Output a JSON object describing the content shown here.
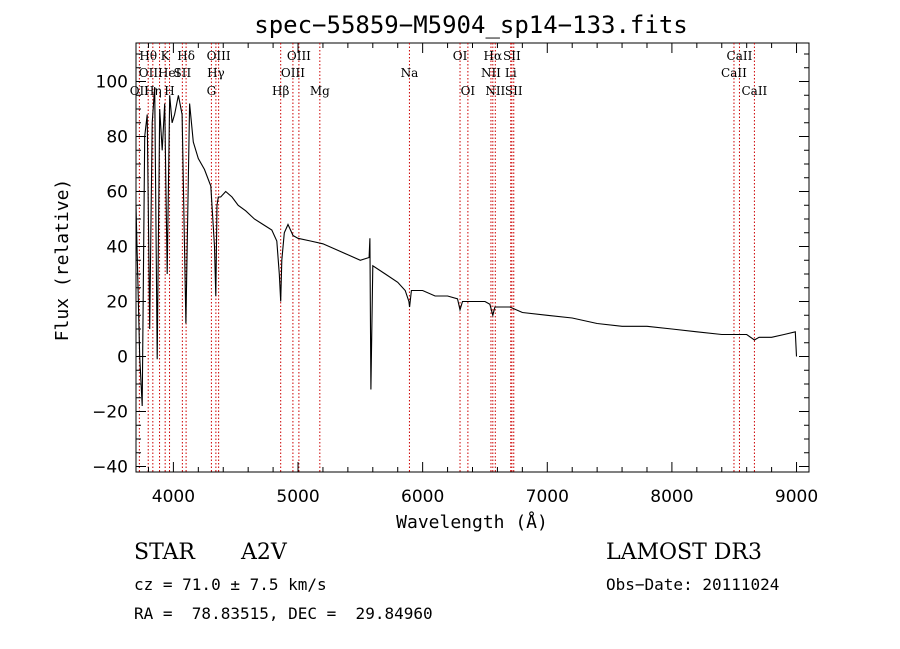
{
  "chart_data": {
    "type": "line",
    "title": "spec−55859−M5904_sp14−133.fits",
    "xlabel": "Wavelength (Å)",
    "ylabel": "Flux (relative)",
    "xlim": [
      3700,
      9100
    ],
    "ylim": [
      -42,
      114
    ],
    "x_ticks": [
      4000,
      5000,
      6000,
      7000,
      8000,
      9000
    ],
    "y_ticks": [
      -40,
      -20,
      0,
      20,
      40,
      60,
      80,
      100
    ],
    "x_tick_labels": [
      "4000",
      "5000",
      "6000",
      "7000",
      "8000",
      "9000"
    ],
    "y_tick_labels": [
      "−40",
      "−20",
      "0",
      "20",
      "40",
      "60",
      "80",
      "100"
    ],
    "series": [
      {
        "name": "flux",
        "x": [
          3700,
          3730,
          3750,
          3770,
          3790,
          3810,
          3830,
          3850,
          3870,
          3890,
          3910,
          3930,
          3950,
          3970,
          3990,
          4010,
          4040,
          4070,
          4100,
          4130,
          4160,
          4200,
          4250,
          4300,
          4330,
          4340,
          4350,
          4360,
          4380,
          4420,
          4470,
          4520,
          4580,
          4650,
          4720,
          4790,
          4830,
          4850,
          4861,
          4870,
          4890,
          4920,
          4960,
          5000,
          5100,
          5200,
          5300,
          5400,
          5500,
          5570,
          5577,
          5585,
          5600,
          5700,
          5800,
          5860,
          5890,
          5895,
          5910,
          5950,
          6000,
          6100,
          6200,
          6280,
          6300,
          6320,
          6400,
          6500,
          6540,
          6563,
          6580,
          6620,
          6700,
          6800,
          7000,
          7200,
          7400,
          7600,
          7800,
          8000,
          8200,
          8400,
          8500,
          8600,
          8662,
          8700,
          8800,
          8900,
          8990,
          9000
        ],
        "values": [
          55,
          0,
          -18,
          80,
          88,
          10,
          85,
          98,
          -1,
          90,
          75,
          92,
          30,
          95,
          85,
          88,
          95,
          88,
          12,
          92,
          78,
          72,
          68,
          62,
          40,
          22,
          55,
          58,
          58,
          60,
          58,
          55,
          53,
          50,
          48,
          46,
          42,
          30,
          20,
          35,
          45,
          48,
          44,
          43,
          42,
          41,
          39,
          37,
          35,
          36,
          43,
          -12,
          33,
          30,
          27,
          24,
          20,
          18,
          24,
          24,
          24,
          22,
          22,
          21,
          17,
          20,
          20,
          20,
          19,
          15,
          18,
          18,
          18,
          16,
          15,
          14,
          12,
          11,
          11,
          10,
          9,
          8,
          8,
          8,
          6,
          7,
          7,
          8,
          9,
          0
        ]
      }
    ],
    "spectral_lines": [
      {
        "name": "O II",
        "label": "OII",
        "wavelength": 3727,
        "row": 2
      },
      {
        "name": "H theta",
        "label": "Hθ",
        "wavelength": 3798,
        "row": 0
      },
      {
        "name": "H eta",
        "label": "Hη",
        "wavelength": 3835,
        "row": 2
      },
      {
        "name": "He I",
        "label": "OIIHeI",
        "wavelength": 3889,
        "row": 1
      },
      {
        "name": "K",
        "label": "K",
        "wavelength": 3934,
        "row": 0
      },
      {
        "name": "H",
        "label": "H",
        "wavelength": 3969,
        "row": 2
      },
      {
        "name": "S II",
        "label": "SII",
        "wavelength": 4072,
        "row": 1
      },
      {
        "name": "H delta",
        "label": "Hδ",
        "wavelength": 4102,
        "row": 0
      },
      {
        "name": "G",
        "label": "G",
        "wavelength": 4305,
        "row": 2
      },
      {
        "name": "H gamma",
        "label": "Hγ",
        "wavelength": 4341,
        "row": 1
      },
      {
        "name": "O III",
        "label": "OIII",
        "wavelength": 4363,
        "row": 0
      },
      {
        "name": "H beta",
        "label": "Hβ",
        "wavelength": 4861,
        "row": 2
      },
      {
        "name": "O III",
        "label": "OIII",
        "wavelength": 4959,
        "row": 1
      },
      {
        "name": "O III",
        "label": "OIII",
        "wavelength": 5007,
        "row": 0
      },
      {
        "name": "Mg",
        "label": "Mg",
        "wavelength": 5175,
        "row": 2
      },
      {
        "name": "Na",
        "label": "Na",
        "wavelength": 5894,
        "row": 1
      },
      {
        "name": "O I",
        "label": "OI",
        "wavelength": 6300,
        "row": 0
      },
      {
        "name": "O I",
        "label": "OI",
        "wavelength": 6363,
        "row": 2
      },
      {
        "name": "N II",
        "label": "NII",
        "wavelength": 6548,
        "row": 1
      },
      {
        "name": "H alpha",
        "label": "Hα",
        "wavelength": 6563,
        "row": 0
      },
      {
        "name": "N II",
        "label": "NII",
        "wavelength": 6583,
        "row": 2
      },
      {
        "name": "Li",
        "label": "Li",
        "wavelength": 6707,
        "row": 1
      },
      {
        "name": "S II",
        "label": "SII",
        "wavelength": 6716,
        "row": 0
      },
      {
        "name": "S II",
        "label": "SII",
        "wavelength": 6731,
        "row": 2
      },
      {
        "name": "Ca II",
        "label": "CaII",
        "wavelength": 8498,
        "row": 1
      },
      {
        "name": "Ca II",
        "label": "CaII",
        "wavelength": 8542,
        "row": 0
      },
      {
        "name": "Ca II",
        "label": "CaII",
        "wavelength": 8662,
        "row": 2
      }
    ],
    "line_color": "#000000",
    "marker_color": "#cc0000",
    "grid": false,
    "legend": "none"
  },
  "info": {
    "object_class": "STAR",
    "subclass": "A2V",
    "survey": "LAMOST DR3",
    "redshift": "cz = 71.0 ± 7.5 km/s",
    "obs_date": "Obs−Date: 20111024",
    "coords": "RA =  78.83515, DEC =  29.84960"
  }
}
